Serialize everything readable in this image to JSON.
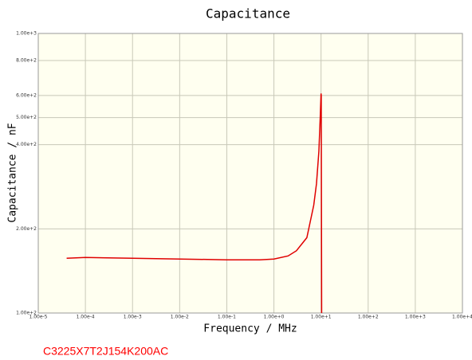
{
  "chart_data": {
    "type": "line",
    "title": "Capacitance",
    "x_label": "Frequency / MHz",
    "y_label": "Capacitance / nF",
    "annotation": "C3225X7T2J154K200AC",
    "annotation_color": "#ff0000",
    "xscale": "log",
    "yscale": "log",
    "grid": true,
    "x": [
      4e-05,
      0.0001,
      0.001,
      0.01,
      0.1,
      0.5,
      1,
      2,
      3,
      5,
      7,
      8,
      9,
      9.6,
      10,
      10.1,
      10.3
    ],
    "series": [
      {
        "name": "C3225X7T2J154K200AC",
        "color": "#e00000",
        "values": [
          157,
          158,
          157,
          156,
          155,
          155,
          156,
          160,
          167,
          186,
          243,
          290,
          379,
          500,
          610,
          600,
          100
        ]
      }
    ],
    "xlim": [
      1e-05,
      10000
    ],
    "ylim": [
      100,
      1000
    ],
    "xticks": [
      {
        "value": 1e-05,
        "label": "1.00e-5"
      },
      {
        "value": 0.0001,
        "label": "1.00e-4"
      },
      {
        "value": 0.001,
        "label": "1.00e-3"
      },
      {
        "value": 0.01,
        "label": "1.00e-2"
      },
      {
        "value": 0.1,
        "label": "1.00e-1"
      },
      {
        "value": 1,
        "label": "1.00e+0"
      },
      {
        "value": 10,
        "label": "1.00e+1"
      },
      {
        "value": 100,
        "label": "1.00e+2"
      },
      {
        "value": 1000,
        "label": "1.00e+3"
      },
      {
        "value": 10000,
        "label": "1.00e+4"
      }
    ],
    "yticks": [
      {
        "value": 100,
        "label": "1.00e+2"
      },
      {
        "value": 200,
        "label": "2.00e+2"
      },
      {
        "value": 400,
        "label": "4.00e+2"
      },
      {
        "value": 500,
        "label": "5.00e+2"
      },
      {
        "value": 600,
        "label": "6.00e+2"
      },
      {
        "value": 800,
        "label": "8.00e+2"
      },
      {
        "value": 1000,
        "label": "1.00e+3"
      }
    ]
  }
}
